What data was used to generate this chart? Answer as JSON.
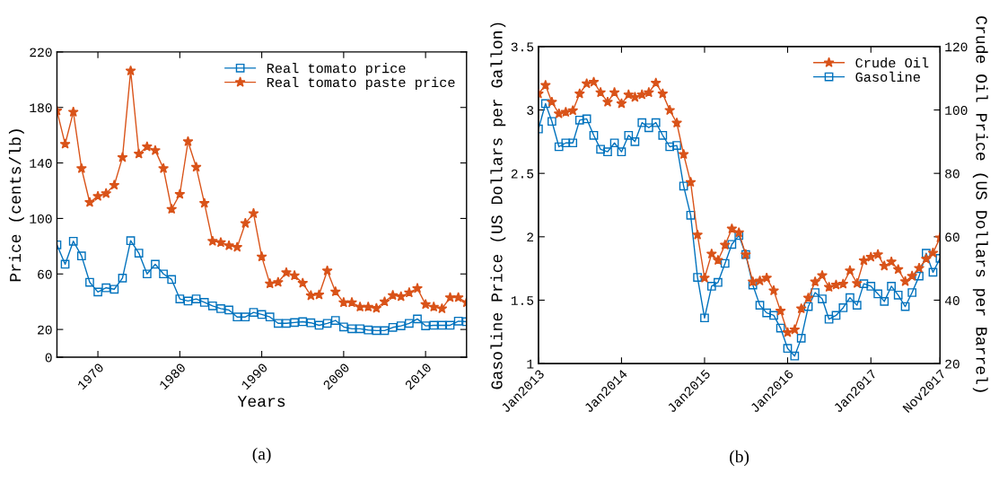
{
  "chart_data": [
    {
      "type": "line",
      "title": "(a)",
      "xlabel": "Years",
      "ylabel": "Price (cents/lb)",
      "legend": "top right",
      "grid": false,
      "x": [
        1965,
        1966,
        1967,
        1968,
        1969,
        1970,
        1971,
        1972,
        1973,
        1974,
        1975,
        1976,
        1977,
        1978,
        1979,
        1980,
        1981,
        1982,
        1983,
        1984,
        1985,
        1986,
        1987,
        1988,
        1989,
        1990,
        1991,
        1992,
        1993,
        1994,
        1995,
        1996,
        1997,
        1998,
        1999,
        2000,
        2001,
        2002,
        2003,
        2004,
        2005,
        2006,
        2007,
        2008,
        2009,
        2010,
        2011,
        2012,
        2013,
        2014,
        2015
      ],
      "xlim": [
        1965,
        2015
      ],
      "xticks": [
        1970,
        1980,
        1990,
        2000,
        2010
      ],
      "ylim": [
        0,
        220
      ],
      "yticks": [
        0,
        20,
        60,
        100,
        140,
        180,
        220
      ],
      "series": [
        {
          "name": "Real tomato price",
          "color": "#0072bd",
          "marker": "square",
          "values": [
            81,
            67,
            83.6,
            73,
            54,
            47,
            50,
            49,
            57,
            84,
            75,
            60,
            67,
            60,
            56,
            42,
            40.5,
            42,
            39.5,
            37,
            35,
            34,
            29,
            29,
            32.3,
            30.8,
            29,
            24.4,
            24.4,
            25,
            25.6,
            24.8,
            23,
            24.4,
            26.5,
            21.8,
            20.5,
            20.5,
            19.6,
            19.2,
            19.2,
            21.5,
            22.6,
            24.4,
            27.6,
            22.6,
            23,
            23,
            23,
            26,
            25.6
          ]
        },
        {
          "name": "Real tomato paste price",
          "color": "#d95319",
          "marker": "star",
          "values": [
            177.6,
            153.6,
            176.7,
            136,
            111.6,
            116,
            118,
            124,
            144,
            206.4,
            146.5,
            151.7,
            149,
            136,
            106.7,
            117.4,
            155.4,
            137,
            111,
            83.6,
            82.7,
            80.4,
            79.3,
            96.5,
            103.6,
            72.4,
            53,
            54,
            61,
            58.8,
            53.4,
            44.4,
            45,
            62.3,
            47.2,
            39.4,
            39.4,
            36.2,
            36.2,
            35.3,
            40,
            44.6,
            43.7,
            46.5,
            49.6,
            38,
            36.2,
            35,
            43,
            43,
            39.4
          ]
        }
      ]
    },
    {
      "type": "line",
      "title": "(b)",
      "ylabel": "Gasoline Price (US Dollars per Gallon)",
      "y2label": "Crude Oil Price (US Dollars per Barrel)",
      "legend": "top right",
      "grid": false,
      "x": [
        "2013-01",
        "2013-02",
        "2013-03",
        "2013-04",
        "2013-05",
        "2013-06",
        "2013-07",
        "2013-08",
        "2013-09",
        "2013-10",
        "2013-11",
        "2013-12",
        "2014-01",
        "2014-02",
        "2014-03",
        "2014-04",
        "2014-05",
        "2014-06",
        "2014-07",
        "2014-08",
        "2014-09",
        "2014-10",
        "2014-11",
        "2014-12",
        "2015-01",
        "2015-02",
        "2015-03",
        "2015-04",
        "2015-05",
        "2015-06",
        "2015-07",
        "2015-08",
        "2015-09",
        "2015-10",
        "2015-11",
        "2015-12",
        "2016-01",
        "2016-02",
        "2016-03",
        "2016-04",
        "2016-05",
        "2016-06",
        "2016-07",
        "2016-08",
        "2016-09",
        "2016-10",
        "2016-11",
        "2016-12",
        "2017-01",
        "2017-02",
        "2017-03",
        "2017-04",
        "2017-05",
        "2017-06",
        "2017-07",
        "2017-08",
        "2017-09",
        "2017-10",
        "2017-11"
      ],
      "xlim": [
        "2013-01",
        "2017-11"
      ],
      "xticks": [
        {
          "value": "2013-01",
          "label": "Jan2013"
        },
        {
          "value": "2014-01",
          "label": "Jan2014"
        },
        {
          "value": "2015-01",
          "label": "Jan2015"
        },
        {
          "value": "2016-01",
          "label": "Jan2016"
        },
        {
          "value": "2017-01",
          "label": "Jan2017"
        },
        {
          "value": "2017-11",
          "label": "Nov2017"
        }
      ],
      "ylim": [
        1,
        3.5
      ],
      "yticks": [
        1,
        1.5,
        2,
        2.5,
        3,
        3.5
      ],
      "y2lim": [
        20,
        120
      ],
      "y2ticks": [
        20,
        40,
        60,
        80,
        100,
        120
      ],
      "series": [
        {
          "name": "Crude Oil",
          "color": "#d95319",
          "marker": "star",
          "axis": "y2",
          "values": [
            105.1,
            107.8,
            102.5,
            98.8,
            99.3,
            99.8,
            105.1,
            108.3,
            108.8,
            105.5,
            102.5,
            105.5,
            102.0,
            104.8,
            104.0,
            104.8,
            105.5,
            108.5,
            105.1,
            99.9,
            95.9,
            86.0,
            77.2,
            60.6,
            47.0,
            54.6,
            52.6,
            57.4,
            62.5,
            61.3,
            54.4,
            45.8,
            46.1,
            47.0,
            43.0,
            36.6,
            29.8,
            30.7,
            37.3,
            40.7,
            45.8,
            47.8,
            44.1,
            44.8,
            45.1,
            49.3,
            45.3,
            52.5,
            53.6,
            54.4,
            50.8,
            52.1,
            49.7,
            45.9,
            47.6,
            50.1,
            53.0,
            54.9,
            59.7
          ]
        },
        {
          "name": "Gasoline",
          "color": "#0072bd",
          "marker": "square",
          "values": [
            2.85,
            3.05,
            2.91,
            2.71,
            2.74,
            2.74,
            2.92,
            2.93,
            2.8,
            2.69,
            2.67,
            2.74,
            2.67,
            2.8,
            2.75,
            2.9,
            2.86,
            2.9,
            2.8,
            2.71,
            2.72,
            2.4,
            2.17,
            1.68,
            1.36,
            1.61,
            1.64,
            1.79,
            1.94,
            2.01,
            1.86,
            1.62,
            1.46,
            1.4,
            1.38,
            1.28,
            1.12,
            1.06,
            1.2,
            1.45,
            1.56,
            1.51,
            1.35,
            1.38,
            1.44,
            1.52,
            1.46,
            1.63,
            1.61,
            1.55,
            1.49,
            1.61,
            1.54,
            1.45,
            1.56,
            1.69,
            1.87,
            1.72,
            1.83
          ]
        }
      ]
    }
  ]
}
